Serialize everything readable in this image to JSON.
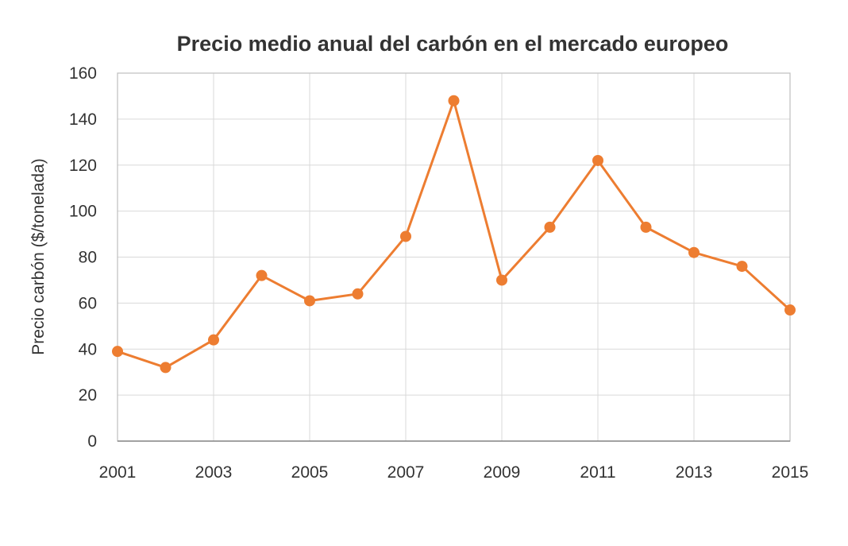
{
  "chart_data": {
    "type": "line",
    "title": "Precio medio anual del carbón en el mercado europeo",
    "xlabel": "",
    "ylabel": "Precio carbón ($/tonelada)",
    "x": [
      2001,
      2002,
      2003,
      2004,
      2005,
      2006,
      2007,
      2008,
      2009,
      2010,
      2011,
      2012,
      2013,
      2014,
      2015
    ],
    "series": [
      {
        "name": "Precio carbón",
        "color": "#ED7D31",
        "values": [
          39,
          32,
          44,
          72,
          61,
          64,
          89,
          148,
          70,
          93,
          122,
          93,
          82,
          76,
          57
        ]
      }
    ],
    "xlim": [
      2001,
      2015
    ],
    "ylim": [
      0,
      160
    ],
    "x_ticks": [
      "2001",
      "2003",
      "2005",
      "2007",
      "2009",
      "2011",
      "2013",
      "2015"
    ],
    "y_ticks": [
      "0",
      "20",
      "40",
      "60",
      "80",
      "100",
      "120",
      "140",
      "160"
    ],
    "grid": true,
    "legend": "none"
  }
}
